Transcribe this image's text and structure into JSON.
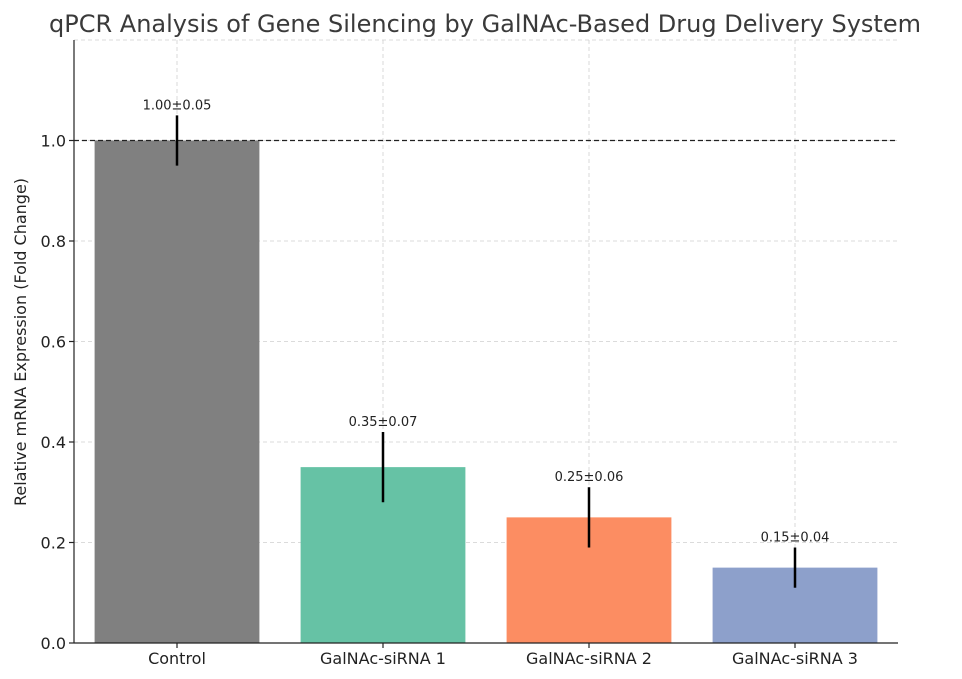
{
  "chart_data": {
    "type": "bar",
    "title": "qPCR Analysis of Gene Silencing by GalNAc-Based Drug Delivery System",
    "xlabel": "",
    "ylabel": "Relative mRNA Expression (Fold Change)",
    "categories": [
      "Control",
      "GalNAc-siRNA 1",
      "GalNAc-siRNA 2",
      "GalNAc-siRNA 3"
    ],
    "values": [
      1.0,
      0.35,
      0.25,
      0.15
    ],
    "errors": [
      0.05,
      0.07,
      0.06,
      0.04
    ],
    "data_labels": [
      "1.00±0.05",
      "0.35±0.07",
      "0.25±0.06",
      "0.15±0.04"
    ],
    "colors": [
      "#808080",
      "#66c2a5",
      "#fc8d62",
      "#8da0cb"
    ],
    "ylim": [
      0,
      1.2
    ],
    "yticks": [
      0.0,
      0.2,
      0.4,
      0.6,
      0.8,
      1.0
    ],
    "ytick_labels": [
      "0.0",
      "0.2",
      "0.4",
      "0.6",
      "0.8",
      "1.0"
    ],
    "reference_line": 1.0,
    "grid": true,
    "legend": "none"
  }
}
